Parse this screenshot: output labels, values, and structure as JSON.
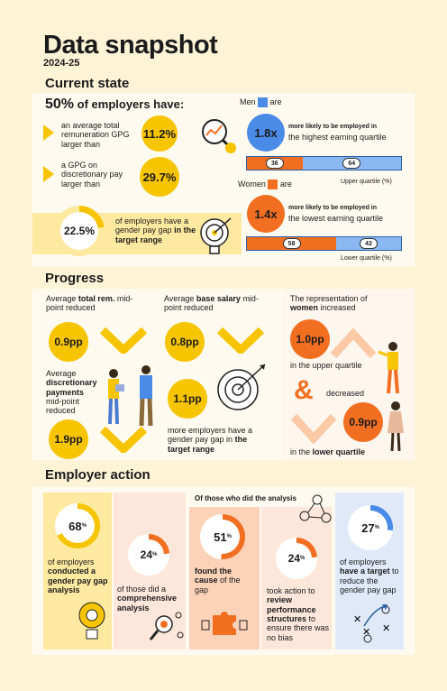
{
  "header": {
    "title": "Data snapshot",
    "year": "2024-25"
  },
  "current_state": {
    "heading": "Current state",
    "intro_pct": "50%",
    "intro_text": "of employers have:",
    "stat1_text": "an average total remuneration GPG larger than",
    "stat1_value": "11.2%",
    "stat2_text": "a GPG on discretionary pay larger than",
    "stat2_value": "29.7%",
    "target_value": "22.5%",
    "target_text": "of employers have a gender pay gap",
    "target_text_bold": "in the target range",
    "men_label": "Men",
    "men_are": "are",
    "men_value": "1.8x",
    "men_desc_small": "more likely to be employed in",
    "men_desc": "the highest earning quartile",
    "upper_bar_a": "36",
    "upper_bar_b": "64",
    "upper_caption": "Upper quartile (%)",
    "women_label": "Women",
    "women_are": "are",
    "women_value": "1.4x",
    "women_desc_small": "more likely to be employed in",
    "women_desc": "the lowest earning quartile",
    "lower_bar_a": "58",
    "lower_bar_b": "42",
    "lower_caption": "Lower quartile (%)",
    "upper_bar_share_women": 36,
    "lower_bar_share_women": 58
  },
  "progress": {
    "heading": "Progress",
    "total_rem_label_1": "Average",
    "total_rem_label_bold": "total rem.",
    "total_rem_label_2": "mid-point reduced",
    "total_rem_value": "0.9pp",
    "base_label_1": "Average",
    "base_label_bold": "base salary",
    "base_label_2": "mid-point reduced",
    "base_value": "0.8pp",
    "disc_label_1": "Average",
    "disc_label_bold": "discretionary payments",
    "disc_label_2": "mid-point reduced",
    "disc_value": "1.9pp",
    "target_value": "1.1pp",
    "target_text": "more employers have a gender pay gap in",
    "target_text_bold": "the target range",
    "rep_label_1": "The representation of",
    "rep_label_bold": "women",
    "rep_label_2": "increased",
    "upper_value": "1.0pp",
    "upper_text": "in the upper quartile",
    "amp": "&",
    "decreased": "decreased",
    "lower_value": "0.9pp",
    "lower_text_1": "in the",
    "lower_text_bold": "lower quartile"
  },
  "employer_action": {
    "heading": "Employer action",
    "subheading": "Of those who did the analysis",
    "c1_value": "68",
    "c1_pct": 68,
    "c1_text_1": "of employers",
    "c1_text_bold": "conducted a gender pay gap analysis",
    "c2_value": "24",
    "c2_pct": 24,
    "c2_text_1": "of those did a",
    "c2_text_bold": "comprehensive analysis",
    "c3_value": "51",
    "c3_pct": 51,
    "c3_text_bold": "found the cause",
    "c3_text_2": "of the gap",
    "c4_value": "24",
    "c4_pct": 24,
    "c4_text_1": "took action to",
    "c4_text_bold": "review performance structures",
    "c4_text_2": "to ensure there was no bias",
    "c5_value": "27",
    "c5_pct": 27,
    "c5_text_1": "of employers",
    "c5_text_bold": "have a target",
    "c5_text_2": "to reduce the gender pay gap",
    "pct_sign": "%"
  },
  "colors": {
    "yellow": "#f7c400",
    "orange": "#f26f21",
    "blue": "#4a8be8",
    "cream": "#fdf3d6"
  }
}
